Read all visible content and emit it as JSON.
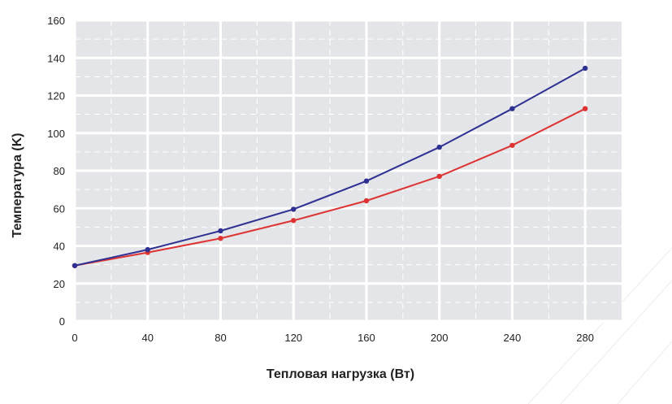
{
  "chart_data": {
    "type": "line",
    "title": "",
    "xlabel": "Тепловая нагрузка (Вт)",
    "ylabel": "Температура (K)",
    "xlim": [
      0,
      300
    ],
    "ylim": [
      0,
      160
    ],
    "xticks": [
      0,
      40,
      80,
      120,
      160,
      200,
      240,
      280
    ],
    "yticks": [
      0,
      20,
      40,
      60,
      80,
      100,
      120,
      140,
      160
    ],
    "grid": true,
    "legend": "none",
    "x": [
      0,
      40,
      80,
      120,
      160,
      200,
      240,
      280
    ],
    "series": [
      {
        "values": [
          29.5,
          38,
          48,
          59.5,
          74.5,
          92.5,
          113,
          134.5
        ],
        "color": "#2e3192"
      },
      {
        "values": [
          29.5,
          36.5,
          44,
          53.5,
          64,
          77,
          93.5,
          113
        ],
        "color": "#dd3333"
      }
    ]
  },
  "colors": {
    "plot_background": "#e4e5e8",
    "major_grid": "#ffffff",
    "minor_grid": "#ffffff"
  }
}
